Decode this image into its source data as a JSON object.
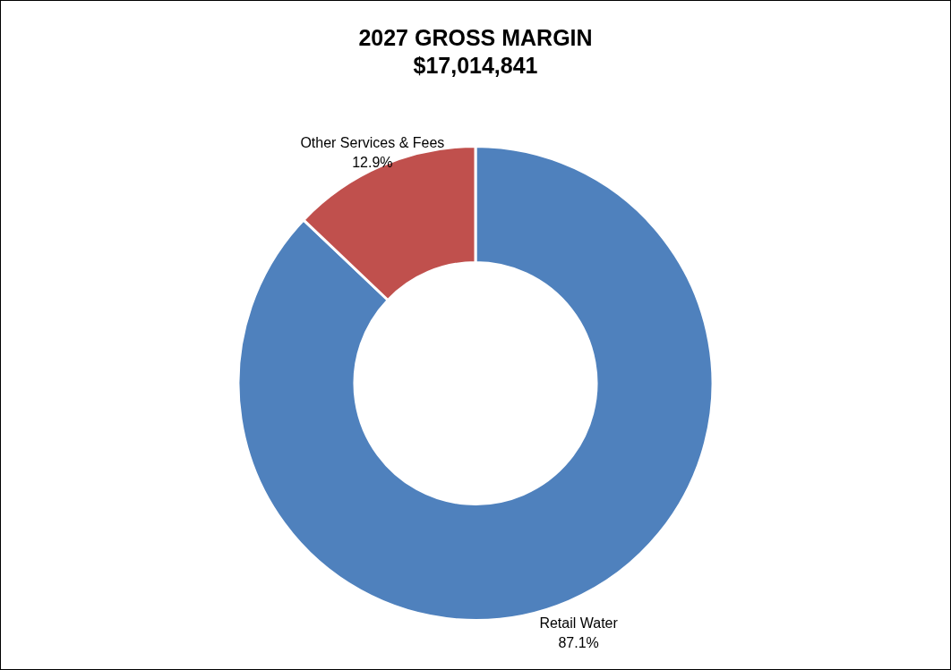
{
  "chart_data": {
    "type": "donut",
    "title": "2027 GROSS MARGIN",
    "subtitle": "$17,014,841",
    "categories": [
      "Retail Water",
      "Other Services & Fees"
    ],
    "values": [
      87.1,
      12.9
    ],
    "colors": [
      "#4f81bd",
      "#c0504d"
    ],
    "value_labels": [
      "87.1%",
      "12.9%"
    ]
  }
}
